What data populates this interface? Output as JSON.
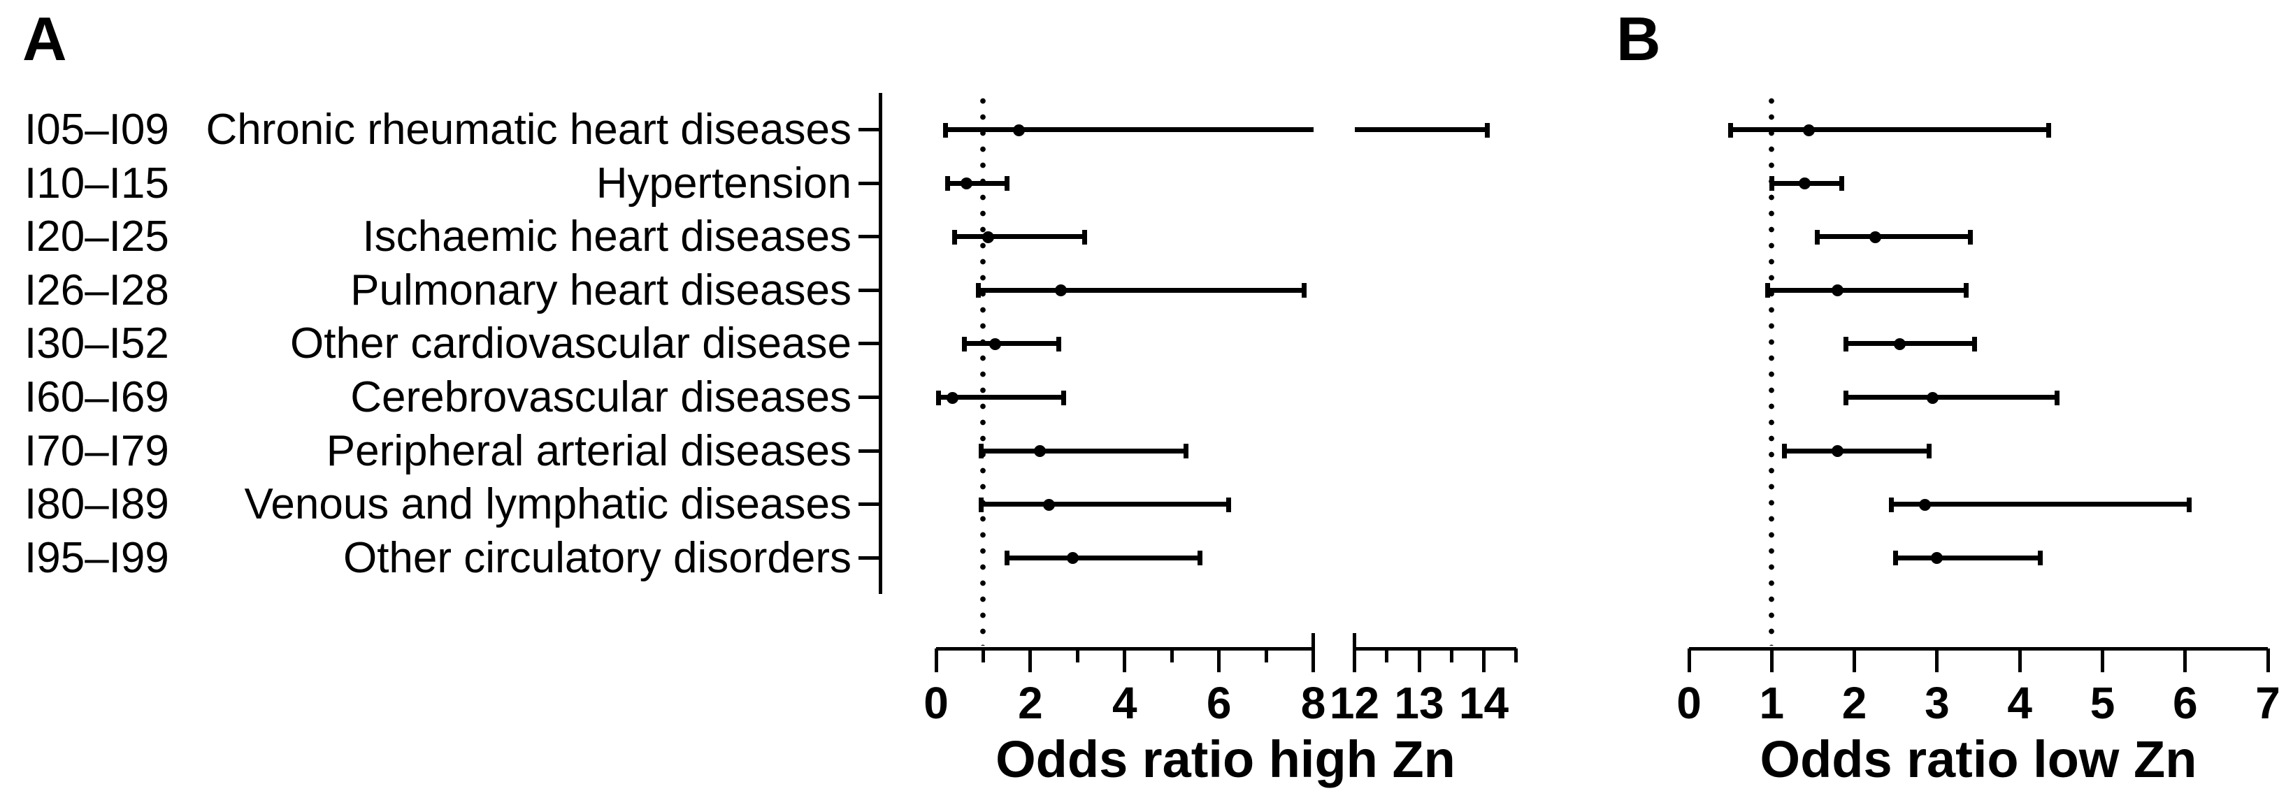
{
  "panels": {
    "a_letter": "A",
    "b_letter": "B"
  },
  "colors": {
    "ink": "#000000",
    "background": "#ffffff"
  },
  "rows": [
    {
      "code": "I05–I09",
      "label": "Chronic rheumatic heart diseases"
    },
    {
      "code": "I10–I15",
      "label": "Hypertension"
    },
    {
      "code": "I20–I25",
      "label": "Ischaemic heart diseases"
    },
    {
      "code": "I26–I28",
      "label": "Pulmonary heart diseases"
    },
    {
      "code": "I30–I52",
      "label": "Other cardiovascular disease"
    },
    {
      "code": "I60–I69",
      "label": "Cerebrovascular diseases"
    },
    {
      "code": "I70–I79",
      "label": "Peripheral arterial diseases"
    },
    {
      "code": "I80–I89",
      "label": "Venous and lymphatic diseases"
    },
    {
      "code": "I95–I99",
      "label": "Other circulatory disorders"
    }
  ],
  "chart_data": [
    {
      "type": "forest",
      "panel": "A",
      "xlabel": "Odds ratio high Zn",
      "reference_line_x": 1,
      "axis": {
        "xlim": [
          0,
          14.5
        ],
        "break_between": [
          8,
          12
        ],
        "ticks_labeled": [
          0,
          2,
          4,
          6,
          8,
          12,
          13,
          14
        ],
        "ticks_minor": [
          1,
          3,
          5,
          7,
          12.5,
          13.5,
          14.5
        ],
        "grid": false
      },
      "values": [
        {
          "or": 1.75,
          "ci_low": 0.2,
          "ci_high": 14.05
        },
        {
          "or": 0.65,
          "ci_low": 0.25,
          "ci_high": 1.5
        },
        {
          "or": 1.1,
          "ci_low": 0.4,
          "ci_high": 3.15
        },
        {
          "or": 2.65,
          "ci_low": 0.9,
          "ci_high": 7.8
        },
        {
          "or": 1.25,
          "ci_low": 0.6,
          "ci_high": 2.6
        },
        {
          "or": 0.35,
          "ci_low": 0.05,
          "ci_high": 2.7
        },
        {
          "or": 2.2,
          "ci_low": 0.95,
          "ci_high": 5.3
        },
        {
          "or": 2.4,
          "ci_low": 0.95,
          "ci_high": 6.2
        },
        {
          "or": 2.9,
          "ci_low": 1.5,
          "ci_high": 5.6
        }
      ]
    },
    {
      "type": "forest",
      "panel": "B",
      "xlabel": "Odds ratio low Zn",
      "reference_line_x": 1,
      "axis": {
        "xlim": [
          0,
          7
        ],
        "ticks_labeled": [
          0,
          1,
          2,
          3,
          4,
          5,
          6,
          7
        ],
        "ticks_minor": [],
        "grid": false
      },
      "values": [
        {
          "or": 1.45,
          "ci_low": 0.5,
          "ci_high": 4.35
        },
        {
          "or": 1.4,
          "ci_low": 1.0,
          "ci_high": 1.85
        },
        {
          "or": 2.25,
          "ci_low": 1.55,
          "ci_high": 3.4
        },
        {
          "or": 1.8,
          "ci_low": 0.95,
          "ci_high": 3.35
        },
        {
          "or": 2.55,
          "ci_low": 1.9,
          "ci_high": 3.45
        },
        {
          "or": 2.95,
          "ci_low": 1.9,
          "ci_high": 4.45
        },
        {
          "or": 1.8,
          "ci_low": 1.15,
          "ci_high": 2.9
        },
        {
          "or": 2.85,
          "ci_low": 2.45,
          "ci_high": 6.05
        },
        {
          "or": 3.0,
          "ci_low": 2.5,
          "ci_high": 4.25
        }
      ]
    }
  ]
}
